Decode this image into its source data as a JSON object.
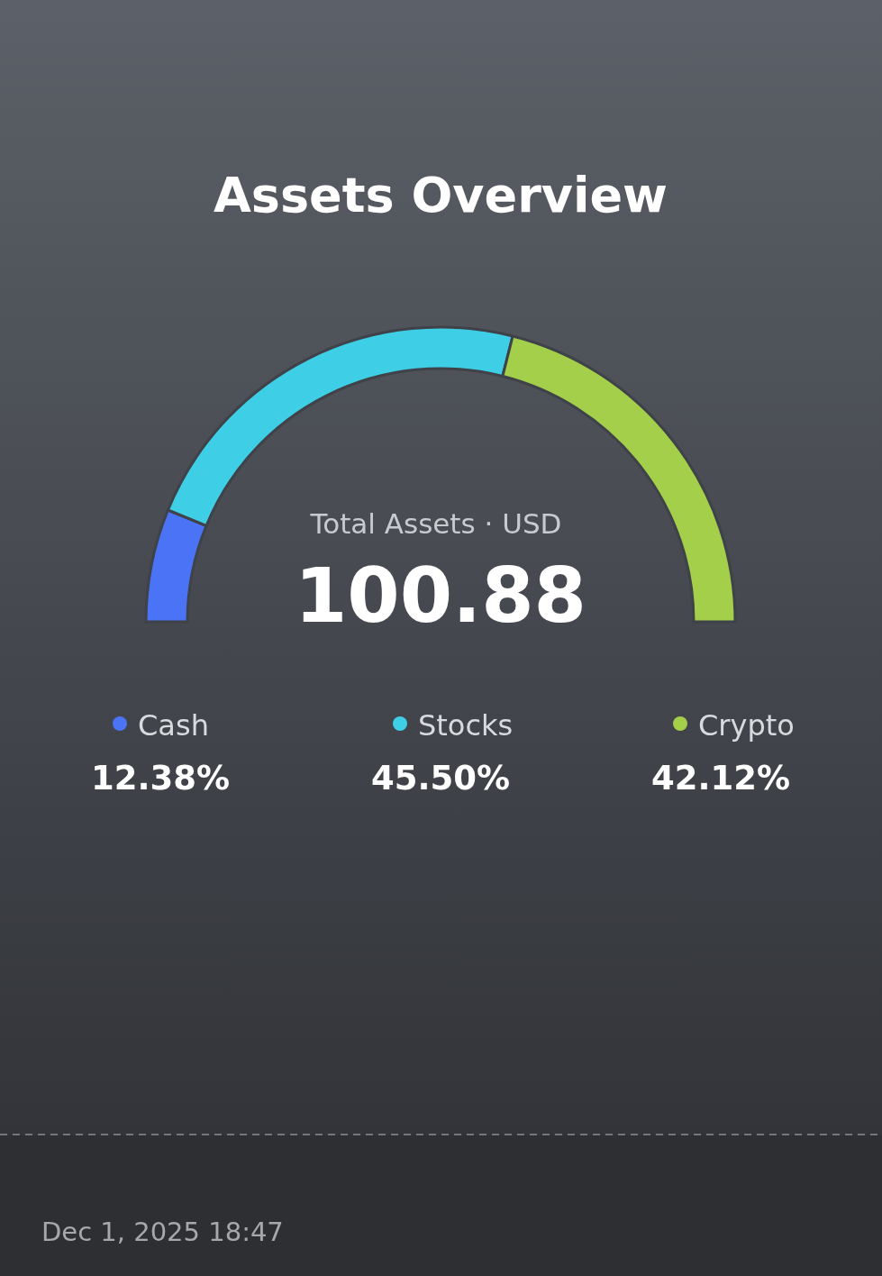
{
  "chart_data": {
    "type": "donut",
    "title": "Assets Overview",
    "categories": [
      "Cash",
      "Stocks",
      "Crypto"
    ],
    "values": [
      12.38,
      45.5,
      42.12
    ],
    "value_labels": [
      "12.38%",
      "45.50%",
      "42.12%"
    ],
    "colors": [
      "#4a74f5",
      "#3ecfe6",
      "#a3cf4a"
    ],
    "legend": "bottom",
    "annotations": [
      "Total Assets · USD",
      "100.88",
      "Dec 1, 2025 18:47"
    ]
  }
}
